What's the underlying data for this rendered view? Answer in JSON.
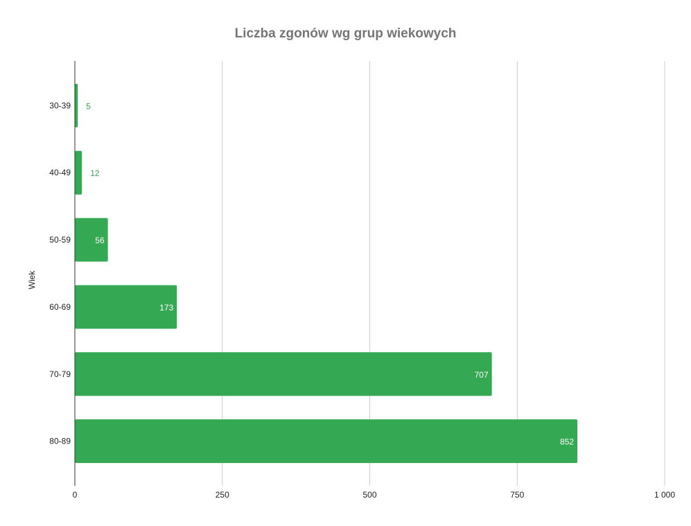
{
  "chart_data": {
    "type": "bar",
    "orientation": "horizontal",
    "title": "Liczba zgonów wg grup wiekowych",
    "xlabel": "",
    "ylabel": "Wiek",
    "categories": [
      "30-39",
      "40-49",
      "50-59",
      "60-69",
      "70-79",
      "80-89"
    ],
    "values": [
      5,
      12,
      56,
      173,
      707,
      852
    ],
    "value_labels": [
      "5",
      "12",
      "56",
      "173",
      "707",
      "852"
    ],
    "xlim": [
      0,
      1000
    ],
    "xticks": [
      0,
      250,
      500,
      750,
      1000
    ],
    "xtick_labels": [
      "0",
      "250",
      "500",
      "750",
      "1 000"
    ],
    "grid": true,
    "legend": "none",
    "colors": {
      "bar": "#34a853",
      "grid": "#cccccc",
      "axis": "#333333",
      "title": "#757575",
      "label_inside": "#ffffff",
      "label_outside": "#34a853"
    }
  }
}
